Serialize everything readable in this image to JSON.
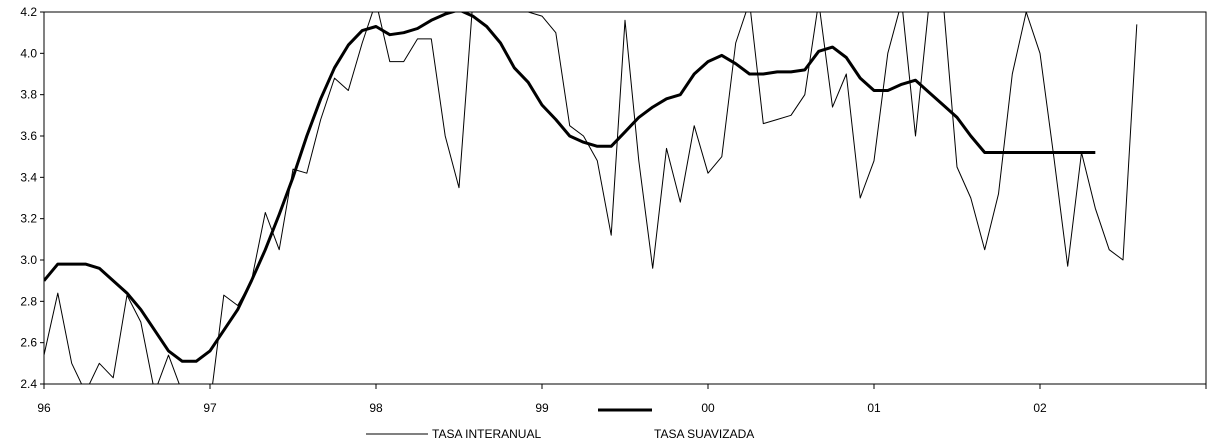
{
  "chart_data": {
    "type": "line",
    "title": "",
    "xlabel": "",
    "ylabel": "",
    "x_ticks": [
      "96",
      "97",
      "98",
      "99",
      "00",
      "01",
      "02"
    ],
    "xlim": [
      96,
      103
    ],
    "ylim": [
      2.4,
      4.2
    ],
    "y_ticks": [
      "2.4",
      "2.6",
      "2.8",
      "3.0",
      "3.2",
      "3.4",
      "3.6",
      "3.8",
      "4.0",
      "4.2"
    ],
    "grid": false,
    "legend_position": "bottom",
    "series": [
      {
        "name": "TASA INTERANUAL",
        "style": "thin",
        "color": "#000000",
        "x": [
          96.0,
          96.083,
          96.167,
          96.25,
          96.333,
          96.417,
          96.5,
          96.583,
          96.667,
          96.75,
          96.833,
          96.917,
          97.0,
          97.083,
          97.167,
          97.25,
          97.333,
          97.417,
          97.5,
          97.583,
          97.667,
          97.75,
          97.833,
          97.917,
          98.0,
          98.083,
          98.167,
          98.25,
          98.333,
          98.417,
          98.5,
          98.583,
          98.667,
          98.75,
          98.833,
          98.917,
          99.0,
          99.083,
          99.167,
          99.25,
          99.333,
          99.417,
          99.5,
          99.583,
          99.667,
          99.75,
          99.833,
          99.917,
          100.0,
          100.083,
          100.167,
          100.25,
          100.333,
          100.417,
          100.5,
          100.583,
          100.667,
          100.75,
          100.833,
          100.917,
          101.0,
          101.083,
          101.167,
          101.25,
          101.333,
          101.417,
          101.5,
          101.583,
          101.667,
          101.75,
          101.833,
          101.917,
          102.0,
          102.083,
          102.167,
          102.25,
          102.333,
          102.417,
          102.5,
          102.583
        ],
        "values": [
          2.54,
          2.84,
          2.5,
          2.36,
          2.5,
          2.43,
          2.83,
          2.7,
          2.36,
          2.54,
          2.36,
          2.28,
          2.3,
          2.83,
          2.78,
          2.9,
          3.23,
          3.05,
          3.44,
          3.42,
          3.68,
          3.88,
          3.82,
          4.05,
          4.25,
          3.96,
          3.96,
          4.07,
          4.07,
          3.6,
          3.35,
          4.25,
          4.25,
          4.2,
          4.24,
          4.2,
          4.18,
          4.1,
          3.65,
          3.6,
          3.48,
          3.12,
          4.16,
          3.48,
          2.96,
          3.54,
          3.28,
          3.65,
          3.42,
          3.5,
          4.05,
          4.25,
          3.66,
          3.68,
          3.7,
          3.8,
          4.25,
          3.74,
          3.9,
          3.3,
          3.48,
          4.0,
          4.25,
          3.6,
          4.25,
          4.25,
          3.45,
          3.3,
          3.05,
          3.32,
          3.9,
          4.2,
          4.0,
          3.5,
          2.97,
          3.52,
          3.25,
          3.05,
          3.0,
          4.14
        ]
      },
      {
        "name": "TASA SUAVIZADA",
        "style": "thick",
        "color": "#000000",
        "x": [
          96.0,
          96.083,
          96.167,
          96.25,
          96.333,
          96.417,
          96.5,
          96.583,
          96.667,
          96.75,
          96.833,
          96.917,
          97.0,
          97.083,
          97.167,
          97.25,
          97.333,
          97.417,
          97.5,
          97.583,
          97.667,
          97.75,
          97.833,
          97.917,
          98.0,
          98.083,
          98.167,
          98.25,
          98.333,
          98.417,
          98.5,
          98.583,
          98.667,
          98.75,
          98.833,
          98.917,
          99.0,
          99.083,
          99.167,
          99.25,
          99.333,
          99.417,
          99.5,
          99.583,
          99.667,
          99.75,
          99.833,
          99.917,
          100.0,
          100.083,
          100.167,
          100.25,
          100.333,
          100.417,
          100.5,
          100.583,
          100.667,
          100.75,
          100.833,
          100.917,
          101.0,
          101.083,
          101.167,
          101.25,
          101.333,
          101.417,
          101.5,
          101.583,
          101.667,
          101.75,
          101.833,
          101.917,
          102.0,
          102.083,
          102.167,
          102.25,
          102.333
        ],
        "values": [
          2.9,
          2.98,
          2.98,
          2.98,
          2.96,
          2.9,
          2.84,
          2.76,
          2.66,
          2.56,
          2.51,
          2.51,
          2.56,
          2.66,
          2.76,
          2.9,
          3.05,
          3.22,
          3.4,
          3.6,
          3.78,
          3.93,
          4.04,
          4.11,
          4.13,
          4.09,
          4.1,
          4.12,
          4.16,
          4.19,
          4.21,
          4.18,
          4.13,
          4.05,
          3.93,
          3.86,
          3.75,
          3.68,
          3.6,
          3.57,
          3.55,
          3.55,
          3.62,
          3.69,
          3.74,
          3.78,
          3.8,
          3.9,
          3.96,
          3.99,
          3.95,
          3.9,
          3.9,
          3.91,
          3.91,
          3.92,
          4.01,
          4.03,
          3.98,
          3.88,
          3.82,
          3.82,
          3.85,
          3.87,
          3.81,
          3.75,
          3.69,
          3.6,
          3.52,
          3.52,
          3.52,
          3.52,
          3.52,
          3.52,
          3.52,
          3.52,
          3.52
        ]
      }
    ]
  }
}
